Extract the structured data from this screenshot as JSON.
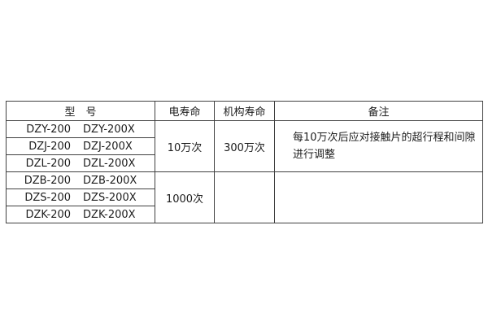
{
  "page": {
    "background": "#ffffff"
  },
  "table": {
    "headers": {
      "model": "型　号",
      "electrical_life": "电寿命",
      "mechanism_life": "机构寿命",
      "remarks": "备注"
    },
    "model_rows": [
      {
        "left": "DZY-200",
        "right": "DZY-200X"
      },
      {
        "left": "DZJ-200",
        "right": "DZJ-200X"
      },
      {
        "left": "DZL-200",
        "right": "DZL-200X"
      },
      {
        "left": "DZB-200",
        "right": "DZB-200X"
      },
      {
        "left": "DZS-200",
        "right": "DZS-200X"
      },
      {
        "left": "DZK-200",
        "right": "DZK-200X"
      }
    ],
    "groups": [
      {
        "electrical_life": "10万次",
        "mechanism_life": "300万次",
        "remark_line1": "每10万次后应对接触片的超行程和间隙",
        "remark_line2": "进行调整"
      },
      {
        "electrical_life": "1000次",
        "mechanism_life": "",
        "remark_line1": "",
        "remark_line2": ""
      }
    ],
    "colors": {
      "border": "#404040",
      "text": "#1c1c1c",
      "background": "#ffffff"
    }
  }
}
